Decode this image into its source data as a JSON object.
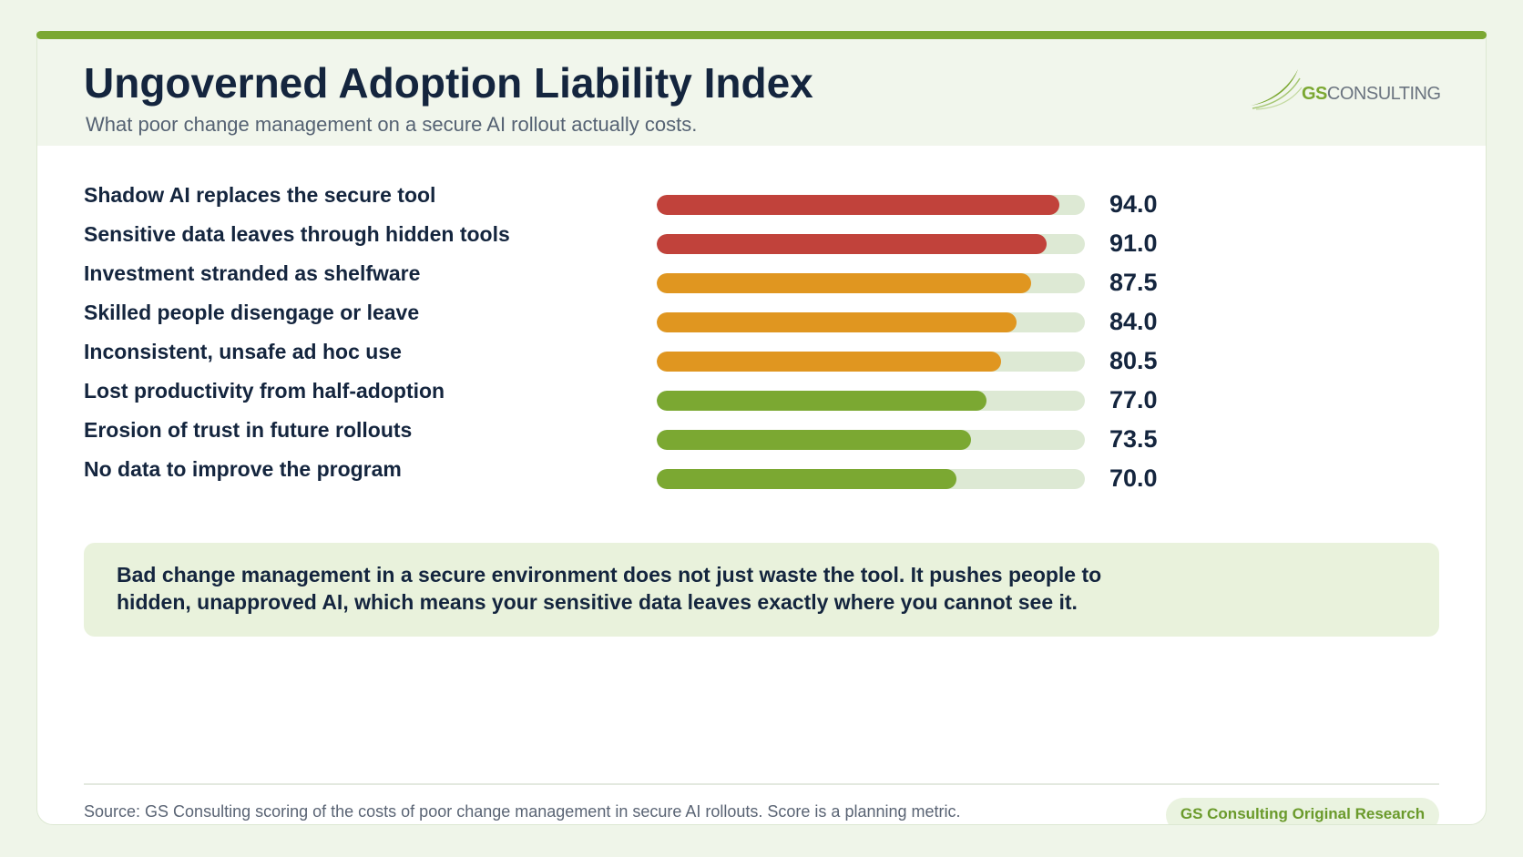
{
  "header": {
    "title": "Ungoverned Adoption Liability Index",
    "subtitle": "What poor change management on a secure AI rollout actually costs.",
    "logo_gs": "GS",
    "logo_consulting": "CONSULTING"
  },
  "colors": {
    "accent": "#7ba832",
    "high": "#c1423b",
    "medium": "#e09620",
    "low": "#7ba832",
    "track": "#dde9d4",
    "text": "#14253e"
  },
  "chart_data": {
    "type": "bar",
    "orientation": "horizontal",
    "xlim": [
      0,
      100
    ],
    "grid": false,
    "categories": [
      "Shadow AI replaces the secure tool",
      "Sensitive data leaves through hidden tools",
      "Investment stranded as shelfware",
      "Skilled people disengage or leave",
      "Inconsistent, unsafe ad hoc use",
      "Lost productivity from half-adoption",
      "Erosion of trust in future rollouts",
      "No data to improve the program"
    ],
    "values": [
      94.0,
      91.0,
      87.5,
      84.0,
      80.5,
      77.0,
      73.5,
      70.0
    ],
    "value_labels": [
      "94.0",
      "91.0",
      "87.5",
      "84.0",
      "80.5",
      "77.0",
      "73.5",
      "70.0"
    ],
    "bar_colors": [
      "#c1423b",
      "#c1423b",
      "#e09620",
      "#e09620",
      "#e09620",
      "#7ba832",
      "#7ba832",
      "#7ba832"
    ]
  },
  "callout": {
    "text": "Bad change management in a secure environment does not just waste the tool. It pushes people to hidden, unapproved AI, which means your sensitive data leaves exactly where you cannot see it."
  },
  "footer": {
    "source": "Source: GS Consulting scoring of the costs of poor change management in secure AI rollouts. Score is a planning metric.",
    "badge": "GS Consulting Original Research"
  }
}
